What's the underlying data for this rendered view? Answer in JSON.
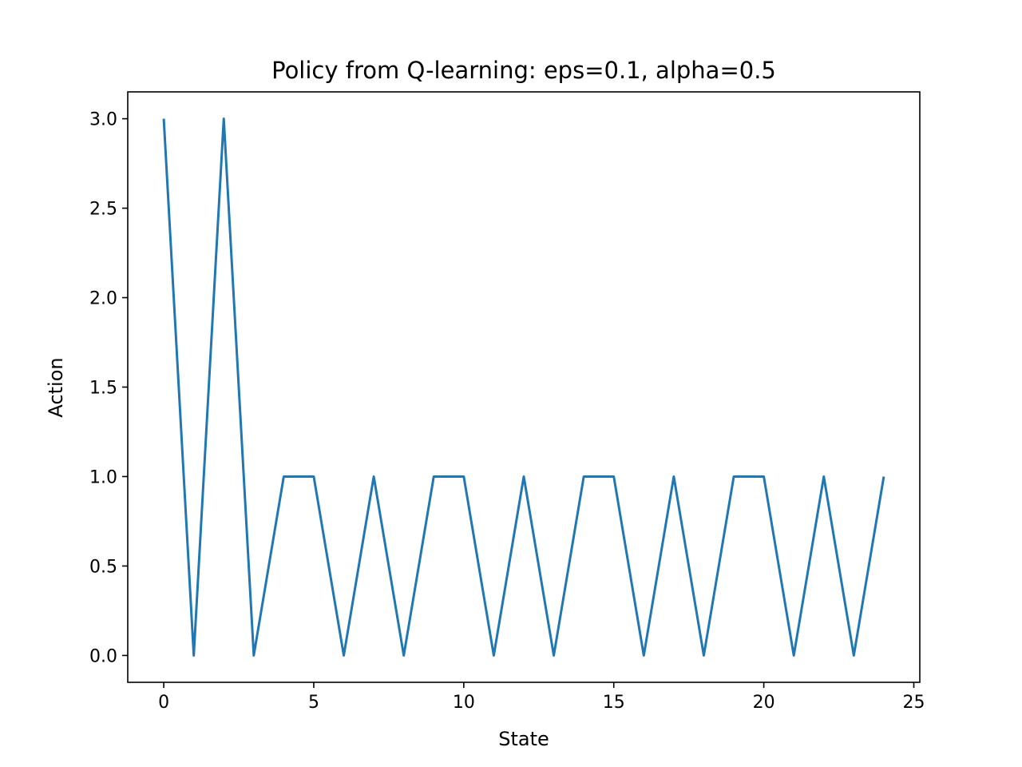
{
  "chart_data": {
    "type": "line",
    "title": "Policy from Q-learning: eps=0.1, alpha=0.5",
    "xlabel": "State",
    "ylabel": "Action",
    "xlim": [
      -1.2,
      25.2
    ],
    "ylim": [
      -0.15,
      3.15
    ],
    "xticks": [
      0,
      5,
      10,
      15,
      20,
      25
    ],
    "xtick_labels": [
      "0",
      "5",
      "10",
      "15",
      "20",
      "25"
    ],
    "yticks": [
      0.0,
      0.5,
      1.0,
      1.5,
      2.0,
      2.5,
      3.0
    ],
    "ytick_labels": [
      "0.0",
      "0.5",
      "1.0",
      "1.5",
      "2.0",
      "2.5",
      "3.0"
    ],
    "grid": false,
    "series": [
      {
        "color": "#1f77b4",
        "x": [
          0,
          1,
          2,
          3,
          4,
          5,
          6,
          7,
          8,
          9,
          10,
          11,
          12,
          13,
          14,
          15,
          16,
          17,
          18,
          19,
          20,
          21,
          22,
          23,
          24
        ],
        "y": [
          3,
          0,
          3,
          0,
          1,
          1,
          0,
          1,
          0,
          1,
          1,
          0,
          1,
          0,
          1,
          1,
          0,
          1,
          0,
          1,
          1,
          0,
          1,
          0,
          1
        ]
      }
    ]
  }
}
